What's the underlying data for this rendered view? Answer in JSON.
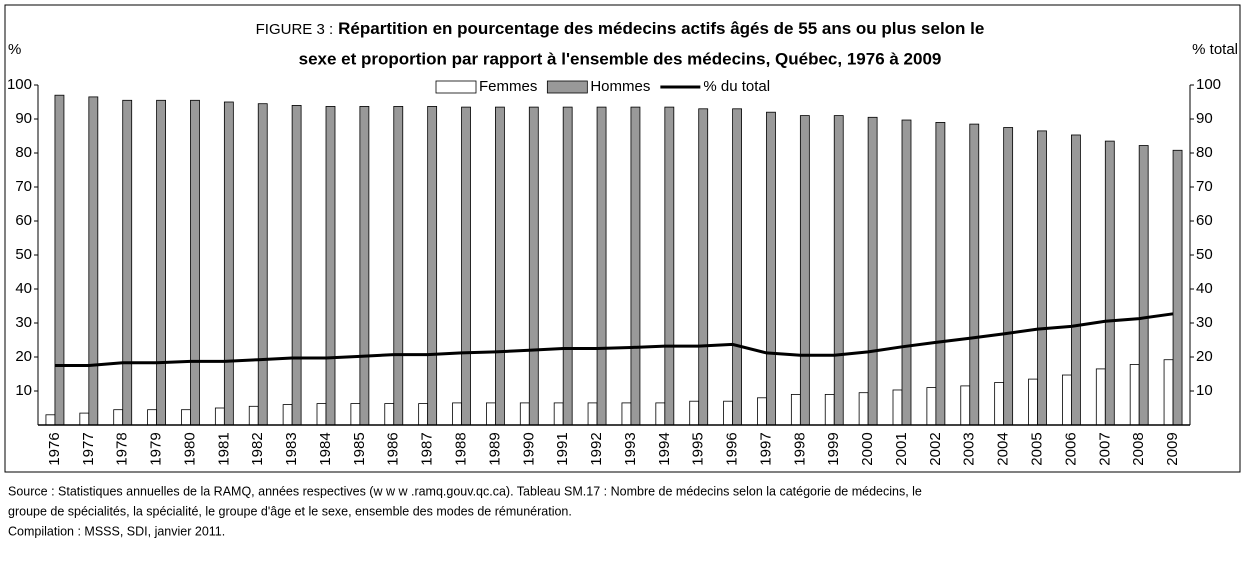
{
  "chart_data": {
    "type": "bar",
    "title_label": "FIGURE 3 :",
    "title": [
      "Répartition en pourcentage des médecins actifs âgés de 55 ans ou plus selon le",
      "sexe et  proportion par rapport à l'ensemble des médecins, Québec, 1976 à 2009"
    ],
    "ylabel": "%",
    "y2label": "% total",
    "categories": [
      "1976",
      "1977",
      "1978",
      "1979",
      "1980",
      "1981",
      "1982",
      "1983",
      "1984",
      "1985",
      "1986",
      "1987",
      "1988",
      "1989",
      "1990",
      "1991",
      "1992",
      "1993",
      "1994",
      "1995",
      "1996",
      "1997",
      "1998",
      "1999",
      "2000",
      "2001",
      "2002",
      "2003",
      "2004",
      "2005",
      "2006",
      "2007",
      "2008",
      "2009"
    ],
    "series": [
      {
        "name": "Femmes",
        "color": "#ffffff",
        "values": [
          3,
          3.5,
          4.5,
          4.5,
          4.5,
          5,
          5.5,
          6,
          6.3,
          6.3,
          6.3,
          6.3,
          6.5,
          6.5,
          6.5,
          6.5,
          6.5,
          6.5,
          6.5,
          7,
          7,
          8,
          9,
          9,
          9.5,
          10.3,
          11,
          11.5,
          12.5,
          13.5,
          14.7,
          16.5,
          17.8,
          19.2
        ]
      },
      {
        "name": "Hommes",
        "color": "#999999",
        "values": [
          97,
          96.5,
          95.5,
          95.5,
          95.5,
          95,
          94.5,
          94,
          93.7,
          93.7,
          93.7,
          93.7,
          93.5,
          93.5,
          93.5,
          93.5,
          93.5,
          93.5,
          93.5,
          93,
          93,
          92,
          91,
          91,
          90.5,
          89.7,
          89,
          88.5,
          87.5,
          86.5,
          85.3,
          83.5,
          82.2,
          80.8
        ]
      },
      {
        "name": "% du total",
        "color": "#000000",
        "type": "line",
        "axis": "y2",
        "values": [
          17.5,
          17.5,
          18.3,
          18.3,
          18.7,
          18.7,
          19.2,
          19.7,
          19.7,
          20.2,
          20.7,
          20.7,
          21.2,
          21.5,
          22,
          22.5,
          22.5,
          22.8,
          23.2,
          23.2,
          23.7,
          21.2,
          20.5,
          20.5,
          21.5,
          23,
          24.3,
          25.5,
          26.8,
          28.2,
          29,
          30.5,
          31.3,
          32.7
        ]
      }
    ],
    "ylim": [
      0,
      100
    ],
    "yticks": [
      10,
      20,
      30,
      40,
      50,
      60,
      70,
      80,
      90,
      100
    ],
    "y2lim": [
      0,
      100
    ],
    "y2ticks": [
      10,
      20,
      30,
      40,
      50,
      60,
      70,
      80,
      90,
      100
    ],
    "legend": "top",
    "source": [
      "Source : Statistiques annuelles de la RAMQ, années respectives (w w w .ramq.gouv.qc.ca). Tableau SM.17 : Nombre de médecins selon la catégorie de médecins, le",
      "groupe de spécialités, la spécialité, le groupe d'âge et le sexe, ensemble des modes de rémunération.",
      "Compilation : MSSS, SDI, janvier 2011."
    ]
  }
}
